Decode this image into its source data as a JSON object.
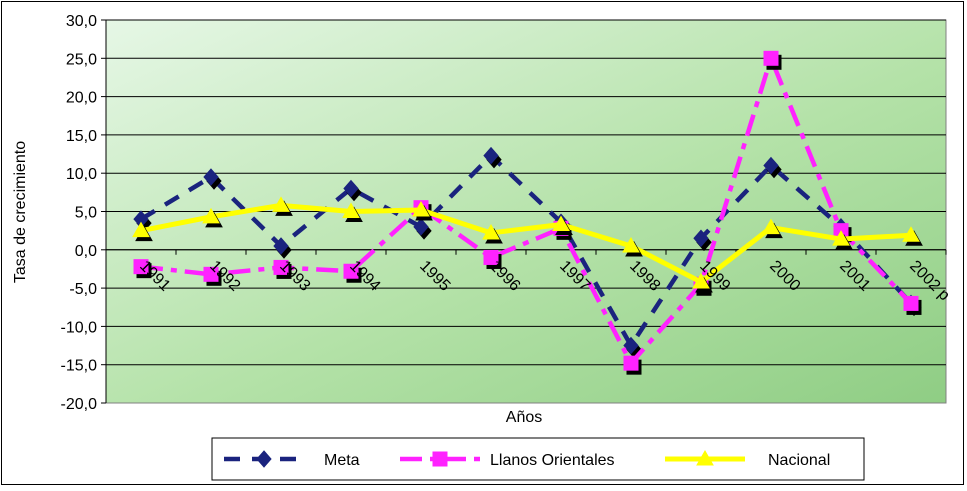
{
  "chart_data": {
    "type": "line",
    "title": "",
    "xlabel": "Años",
    "ylabel": "Tasa de crecimiento",
    "categories": [
      "1991",
      "1992",
      "1993",
      "1994",
      "1995",
      "1996",
      "1997",
      "1998",
      "1999",
      "2000",
      "2001",
      "2002 p"
    ],
    "ylim": [
      -20,
      30
    ],
    "yticks": [
      30,
      25,
      20,
      15,
      10,
      5,
      0,
      -5,
      -10,
      -15,
      -20
    ],
    "ytick_labels": [
      "30,0",
      "25,0",
      "20,0",
      "15,0",
      "10,0",
      "5,0",
      "0,0",
      "-5,0",
      "-10,0",
      "-15,0",
      "-20,0"
    ],
    "grid": true,
    "legend_position": "bottom",
    "series": [
      {
        "name": "Meta",
        "color": "#1a237e",
        "style": "dashed",
        "marker": "diamond",
        "values": [
          4.0,
          9.5,
          0.5,
          8.0,
          3.0,
          12.3,
          3.6,
          -12.5,
          1.5,
          11.0,
          3.0,
          -7.0
        ]
      },
      {
        "name": "Llanos Orientales",
        "color": "#ff22ff",
        "style": "dash-dot",
        "marker": "square",
        "values": [
          -2.2,
          -3.2,
          -2.3,
          -2.8,
          5.5,
          -1.0,
          2.8,
          -14.8,
          -4.5,
          25.0,
          2.5,
          -7.0
        ]
      },
      {
        "name": "Nacional",
        "color": "#ffff00",
        "style": "solid",
        "marker": "triangle",
        "values": [
          2.5,
          4.3,
          5.8,
          5.0,
          5.2,
          2.2,
          3.3,
          0.5,
          -4.2,
          2.9,
          1.4,
          1.9
        ]
      }
    ]
  }
}
